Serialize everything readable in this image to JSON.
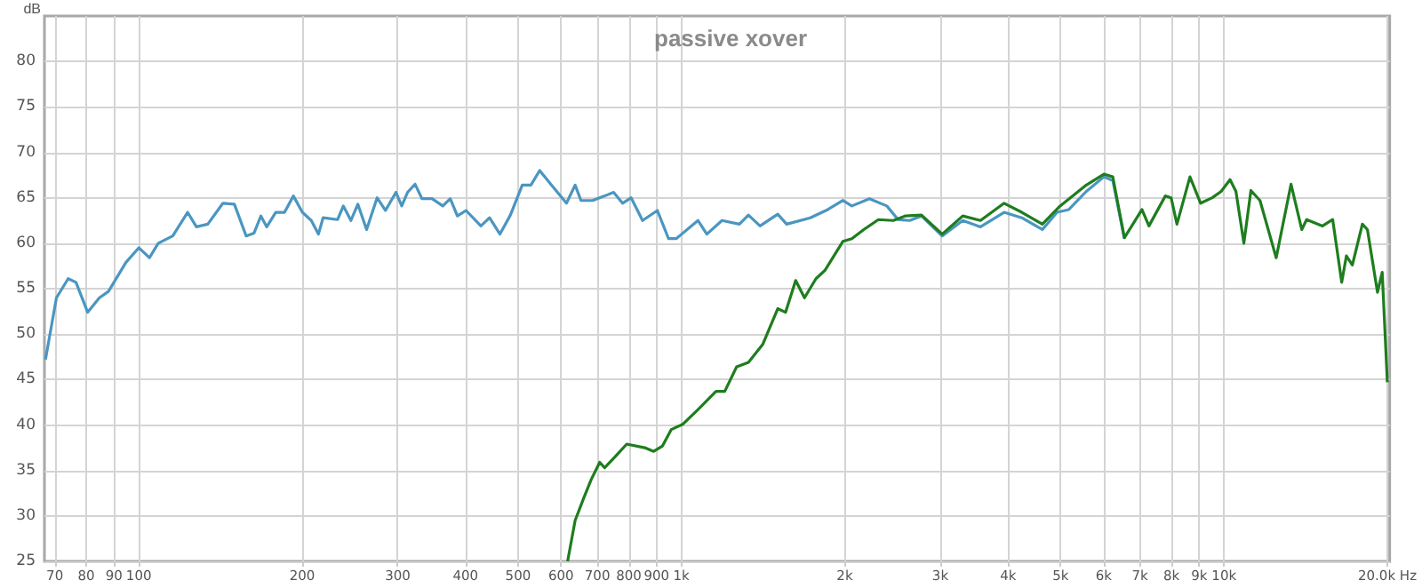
{
  "chart_data": {
    "type": "line",
    "title": "passive xover",
    "ylabel": "dB",
    "xlim": [
      67,
      20200
    ],
    "ylim": [
      25,
      85
    ],
    "xticks": [
      70,
      80,
      90,
      100,
      200,
      300,
      400,
      500,
      600,
      700,
      800,
      900,
      {
        "value": 1000,
        "label": "1k"
      },
      {
        "value": 2000,
        "label": "2k"
      },
      {
        "value": 3000,
        "label": "3k"
      },
      {
        "value": 4000,
        "label": "4k"
      },
      {
        "value": 5000,
        "label": "5k"
      },
      {
        "value": 6000,
        "label": "6k"
      },
      {
        "value": 7000,
        "label": "7k"
      },
      {
        "value": 8000,
        "label": "8k"
      },
      {
        "value": 9000,
        "label": "9k"
      },
      {
        "value": 10000,
        "label": "10k"
      },
      {
        "value": 20000,
        "label": "20.0k Hz"
      }
    ],
    "yticks": [
      25,
      30,
      35,
      40,
      45,
      50,
      55,
      60,
      65,
      70,
      75,
      80
    ],
    "log": "x",
    "grid": true,
    "marker": "none",
    "line_style": "solid",
    "series": [
      {
        "color": "#4a96c0",
        "x": [
          67.3,
          70.5,
          74.1,
          76.6,
          80.5,
          84.6,
          87.9,
          94.7,
          100,
          104.6,
          108.6,
          115.5,
          123,
          127.7,
          134,
          142.9,
          150,
          157.7,
          163,
          167.9,
          172.1,
          178.8,
          185.6,
          192.7,
          200.2,
          207.9,
          214.3,
          218.6,
          232.5,
          238.2,
          246,
          253.3,
          262.9,
          274.9,
          284.8,
          297.8,
          305.2,
          312.8,
          323,
          332.6,
          347,
          363.3,
          375,
          386.5,
          401,
          427,
          443,
          463,
          484,
          509,
          528,
          548,
          576,
          614,
          637,
          653,
          686,
          722,
          750,
          779,
          808,
          848,
          903,
          947,
          978,
          1073,
          1114,
          1188,
          1279,
          1329,
          1396,
          1505,
          1563,
          1728,
          1861,
          1984,
          2061,
          2221,
          2391,
          2508,
          2634,
          2770,
          3024,
          3300,
          3558,
          3933,
          4240,
          4627,
          4924,
          5176,
          5575,
          6007,
          6238,
          6553
        ],
        "values": [
          47.2,
          54.0,
          56.1,
          55.7,
          52.4,
          54.0,
          54.7,
          57.9,
          59.5,
          58.4,
          60.0,
          60.8,
          63.4,
          61.8,
          62.1,
          64.4,
          64.3,
          60.8,
          61.1,
          63.0,
          61.8,
          63.4,
          63.4,
          65.2,
          63.4,
          62.5,
          61.0,
          62.8,
          62.6,
          64.1,
          62.5,
          64.3,
          61.5,
          65.0,
          63.6,
          65.6,
          64.1,
          65.6,
          66.5,
          64.9,
          64.9,
          64.1,
          64.9,
          63.0,
          63.6,
          61.9,
          62.8,
          61.0,
          63.1,
          66.4,
          66.4,
          68.0,
          66.4,
          64.4,
          66.4,
          64.7,
          64.7,
          65.2,
          65.6,
          64.4,
          65.0,
          62.5,
          63.6,
          60.5,
          60.5,
          62.5,
          61.0,
          62.5,
          62.1,
          63.1,
          61.9,
          63.2,
          62.1,
          62.8,
          63.7,
          64.7,
          64.1,
          64.9,
          64.1,
          62.6,
          62.5,
          63.0,
          60.8,
          62.5,
          61.8,
          63.4,
          62.8,
          61.5,
          63.4,
          63.7,
          65.7,
          67.3,
          66.9,
          60.5
        ]
      },
      {
        "color": "#1e7d1e",
        "x": [
          617,
          637,
          661,
          682,
          707,
          722,
          757,
          793,
          856,
          889,
          923,
          958,
          1007,
          1073,
          1158,
          1202,
          1264,
          1329,
          1413,
          1505,
          1556,
          1624,
          1686,
          1770,
          1838,
          1984,
          2061,
          2168,
          2307,
          2458,
          2584,
          2770,
          3024,
          3300,
          3558,
          3933,
          4240,
          4627,
          4988,
          5575,
          6007,
          6238,
          6553,
          7060,
          7272,
          7796,
          7990,
          8190,
          8655,
          9055,
          9513,
          9880,
          10260,
          10520,
          10880,
          11210,
          11650,
          12480,
          13290,
          13910,
          14200,
          15190,
          15860,
          16480,
          16810,
          17240,
          17990,
          18380,
          19180,
          19570,
          20000
        ],
        "values": [
          25.0,
          29.5,
          32.0,
          34.0,
          35.9,
          35.3,
          36.6,
          37.9,
          37.5,
          37.1,
          37.7,
          39.5,
          40.1,
          41.7,
          43.7,
          43.7,
          46.4,
          46.9,
          48.9,
          52.8,
          52.4,
          55.9,
          54.0,
          56.1,
          57.0,
          60.2,
          60.5,
          61.5,
          62.6,
          62.5,
          63.0,
          63.1,
          61.0,
          63.0,
          62.5,
          64.4,
          63.4,
          62.1,
          64.1,
          66.4,
          67.6,
          67.3,
          60.6,
          63.7,
          61.9,
          65.2,
          65.0,
          62.1,
          67.3,
          64.4,
          65.0,
          65.7,
          67.0,
          65.7,
          60.0,
          65.8,
          64.7,
          58.4,
          66.5,
          61.5,
          62.6,
          61.9,
          62.6,
          55.7,
          58.6,
          57.6,
          62.1,
          61.5,
          54.6,
          56.8,
          44.7
        ]
      }
    ]
  }
}
